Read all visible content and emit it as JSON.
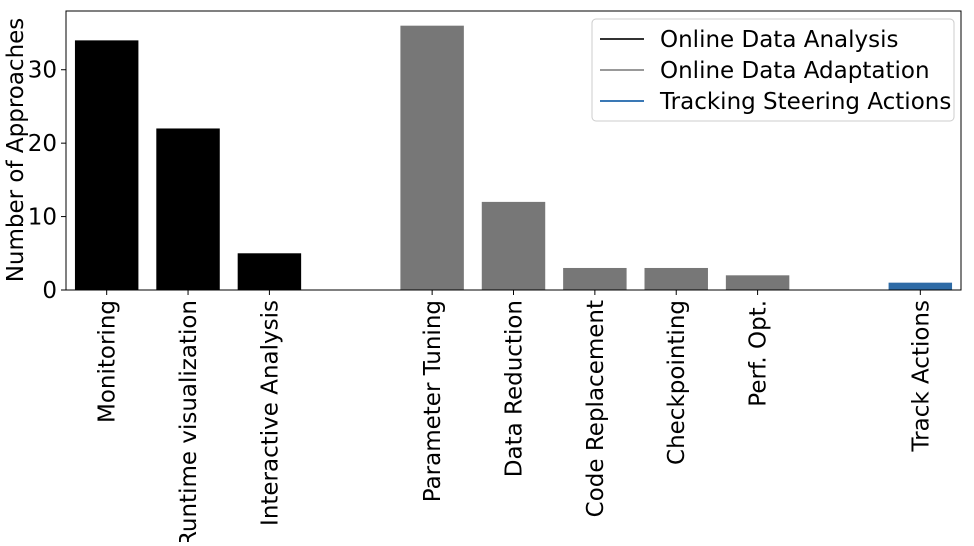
{
  "chart_data": {
    "type": "bar",
    "title": "",
    "xlabel": "",
    "ylabel": "Number of Approaches",
    "ylim": [
      0,
      38
    ],
    "yticks": [
      0,
      10,
      20,
      30
    ],
    "grid": false,
    "legend_position": "top-right",
    "categories": [
      "Monitoring",
      "Runtime visualization",
      "Interactive Analysis",
      "",
      "Parameter Tuning",
      "Data Reduction",
      "Code Replacement",
      "Checkpointing",
      "Perf. Opt.",
      "",
      "Track Actions"
    ],
    "values": [
      34,
      22,
      5,
      null,
      36,
      12,
      3,
      3,
      2,
      null,
      1
    ],
    "bar_groups": [
      0,
      0,
      0,
      null,
      1,
      1,
      1,
      1,
      1,
      null,
      2
    ],
    "legend": [
      {
        "name": "Online Data Analysis",
        "color": "#000000"
      },
      {
        "name": "Online Data Adaptation",
        "color": "#777777"
      },
      {
        "name": "Tracking Steering Actions",
        "color": "#2e6ba6"
      }
    ],
    "legend_line_colors": [
      "#333333",
      "#999999",
      "#3a78b5"
    ]
  }
}
